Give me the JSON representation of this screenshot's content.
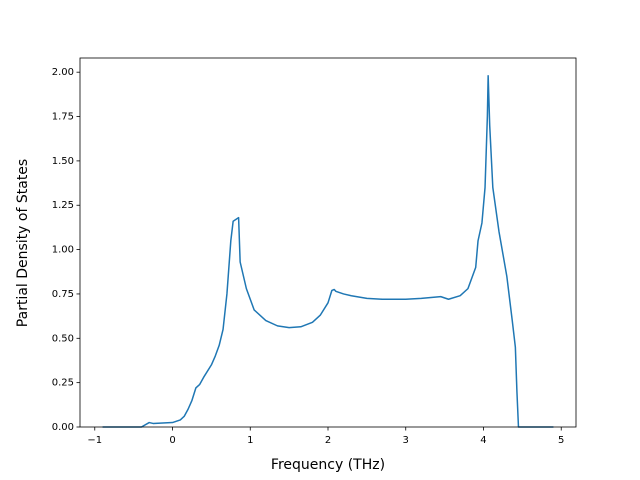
{
  "chart_data": {
    "type": "line",
    "xlabel": "Frequency (THz)",
    "ylabel": "Partial Density of States",
    "color": "#1f77b4",
    "x": [
      -0.9,
      -0.4,
      -0.3,
      -0.25,
      0,
      0.1,
      0.15,
      0.2,
      0.25,
      0.3,
      0.35,
      0.4,
      0.5,
      0.55,
      0.6,
      0.65,
      0.7,
      0.75,
      0.78,
      0.85,
      0.87,
      0.95,
      1.05,
      1.2,
      1.35,
      1.5,
      1.65,
      1.8,
      1.9,
      2.0,
      2.05,
      2.08,
      2.1,
      2.2,
      2.3,
      2.5,
      2.7,
      3.0,
      3.2,
      3.45,
      3.55,
      3.7,
      3.8,
      3.9,
      3.93,
      3.98,
      4.02,
      4.05,
      4.06,
      4.08,
      4.12,
      4.2,
      4.3,
      4.37,
      4.41,
      4.43,
      4.45,
      4.9
    ],
    "values": [
      0,
      0,
      0.025,
      0.02,
      0.025,
      0.04,
      0.06,
      0.1,
      0.15,
      0.22,
      0.24,
      0.28,
      0.35,
      0.4,
      0.46,
      0.55,
      0.75,
      1.05,
      1.16,
      1.18,
      0.93,
      0.78,
      0.66,
      0.6,
      0.57,
      0.56,
      0.565,
      0.59,
      0.63,
      0.7,
      0.77,
      0.775,
      0.765,
      0.75,
      0.74,
      0.725,
      0.72,
      0.72,
      0.725,
      0.735,
      0.72,
      0.74,
      0.78,
      0.9,
      1.05,
      1.15,
      1.35,
      1.75,
      1.98,
      1.7,
      1.35,
      1.1,
      0.85,
      0.6,
      0.45,
      0.2,
      0,
      0
    ],
    "xlim": [
      -1.19,
      5.19
    ],
    "ylim": [
      0,
      2.08
    ],
    "xticks": [
      {
        "value": -1,
        "label": "−1"
      },
      0,
      1,
      2,
      3,
      4,
      5
    ],
    "yticks": [
      {
        "value": 0,
        "label": "0.00"
      },
      0.25,
      {
        "value": 0.5,
        "label": "0.50"
      },
      0.75,
      {
        "value": 1,
        "label": "1.00"
      },
      1.25,
      {
        "value": 1.5,
        "label": "1.50"
      },
      1.75,
      {
        "value": 2,
        "label": "2.00"
      }
    ]
  }
}
